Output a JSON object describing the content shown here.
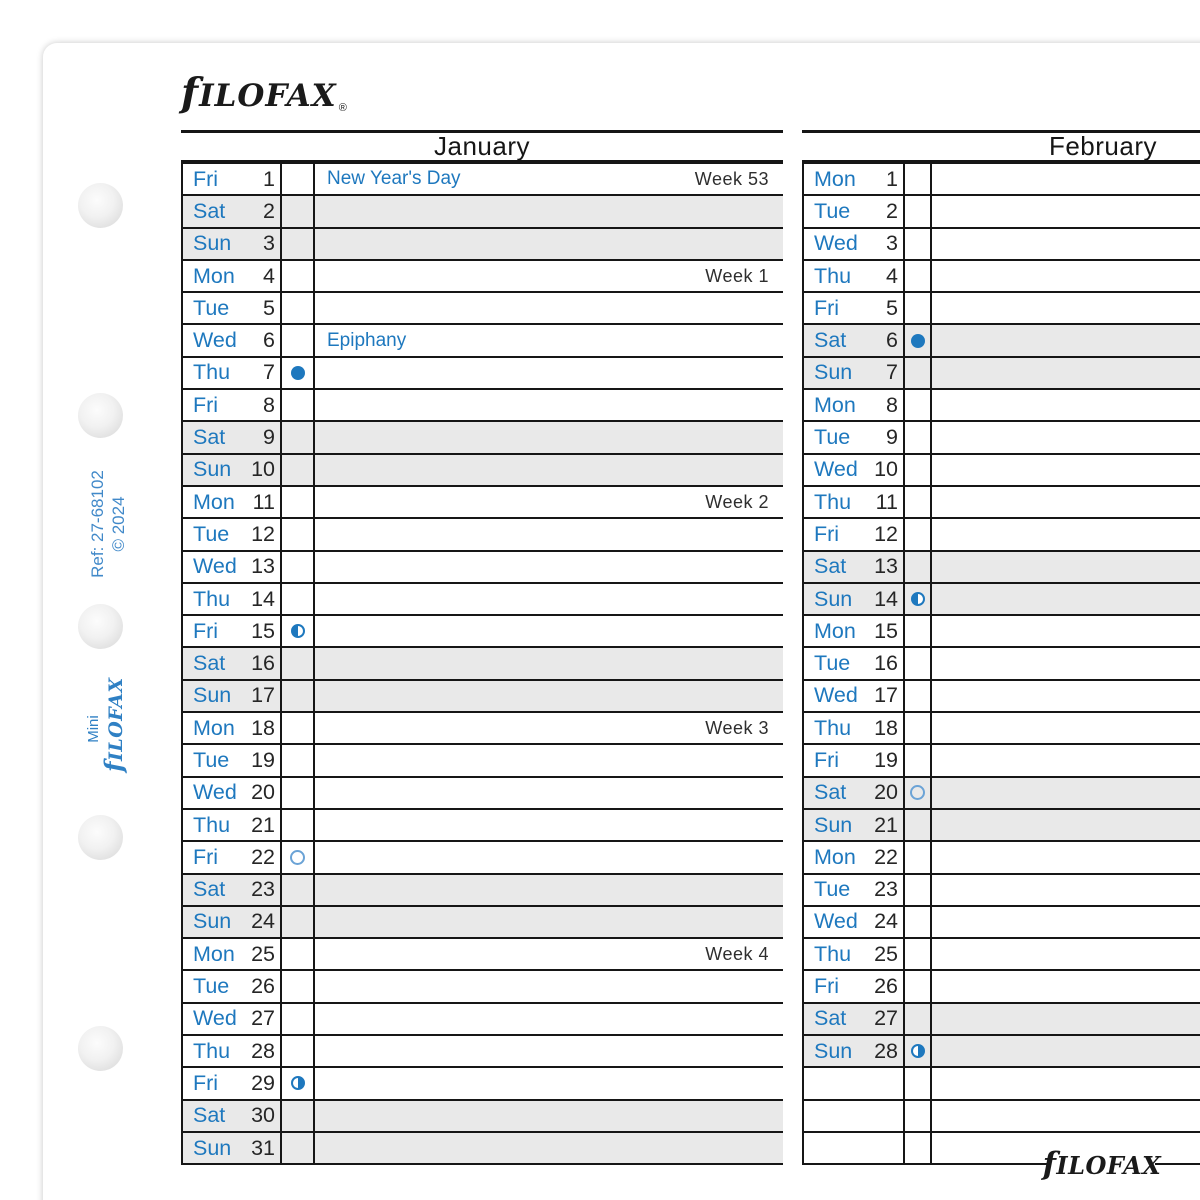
{
  "brand": {
    "logo": "fILOFAX",
    "registered": "®"
  },
  "side": {
    "ref_line1": "Ref: 27-68102",
    "ref_line2": "© 2024",
    "brand_line1": "Mini",
    "brand_line2": "fILOFAX"
  },
  "footer": {
    "logo": "fILOFAX"
  },
  "colors": {
    "accent_blue": "#1e78be",
    "side_text_blue": "#4189c9",
    "grid_black": "#161616",
    "weekend_gray": "#e9e9e9"
  },
  "months": [
    {
      "name": "January",
      "key": "jan",
      "rows": [
        {
          "day": "Fri",
          "date": "1",
          "event": "New Year's Day",
          "week": "Week 53",
          "moon": "",
          "weekend": false
        },
        {
          "day": "Sat",
          "date": "2",
          "event": "",
          "week": "",
          "moon": "",
          "weekend": true
        },
        {
          "day": "Sun",
          "date": "3",
          "event": "",
          "week": "",
          "moon": "",
          "weekend": true
        },
        {
          "day": "Mon",
          "date": "4",
          "event": "",
          "week": "Week 1",
          "moon": "",
          "weekend": false
        },
        {
          "day": "Tue",
          "date": "5",
          "event": "",
          "week": "",
          "moon": "",
          "weekend": false
        },
        {
          "day": "Wed",
          "date": "6",
          "event": "Epiphany",
          "week": "",
          "moon": "",
          "weekend": false
        },
        {
          "day": "Thu",
          "date": "7",
          "event": "",
          "week": "",
          "moon": "filled",
          "weekend": false
        },
        {
          "day": "Fri",
          "date": "8",
          "event": "",
          "week": "",
          "moon": "",
          "weekend": false
        },
        {
          "day": "Sat",
          "date": "9",
          "event": "",
          "week": "",
          "moon": "",
          "weekend": true
        },
        {
          "day": "Sun",
          "date": "10",
          "event": "",
          "week": "",
          "moon": "",
          "weekend": true
        },
        {
          "day": "Mon",
          "date": "11",
          "event": "",
          "week": "Week 2",
          "moon": "",
          "weekend": false
        },
        {
          "day": "Tue",
          "date": "12",
          "event": "",
          "week": "",
          "moon": "",
          "weekend": false
        },
        {
          "day": "Wed",
          "date": "13",
          "event": "",
          "week": "",
          "moon": "",
          "weekend": false
        },
        {
          "day": "Thu",
          "date": "14",
          "event": "",
          "week": "",
          "moon": "",
          "weekend": false
        },
        {
          "day": "Fri",
          "date": "15",
          "event": "",
          "week": "",
          "moon": "half-left",
          "weekend": false
        },
        {
          "day": "Sat",
          "date": "16",
          "event": "",
          "week": "",
          "moon": "",
          "weekend": true
        },
        {
          "day": "Sun",
          "date": "17",
          "event": "",
          "week": "",
          "moon": "",
          "weekend": true
        },
        {
          "day": "Mon",
          "date": "18",
          "event": "",
          "week": "Week 3",
          "moon": "",
          "weekend": false
        },
        {
          "day": "Tue",
          "date": "19",
          "event": "",
          "week": "",
          "moon": "",
          "weekend": false
        },
        {
          "day": "Wed",
          "date": "20",
          "event": "",
          "week": "",
          "moon": "",
          "weekend": false
        },
        {
          "day": "Thu",
          "date": "21",
          "event": "",
          "week": "",
          "moon": "",
          "weekend": false
        },
        {
          "day": "Fri",
          "date": "22",
          "event": "",
          "week": "",
          "moon": "open",
          "weekend": false
        },
        {
          "day": "Sat",
          "date": "23",
          "event": "",
          "week": "",
          "moon": "",
          "weekend": true
        },
        {
          "day": "Sun",
          "date": "24",
          "event": "",
          "week": "",
          "moon": "",
          "weekend": true
        },
        {
          "day": "Mon",
          "date": "25",
          "event": "",
          "week": "Week 4",
          "moon": "",
          "weekend": false
        },
        {
          "day": "Tue",
          "date": "26",
          "event": "",
          "week": "",
          "moon": "",
          "weekend": false
        },
        {
          "day": "Wed",
          "date": "27",
          "event": "",
          "week": "",
          "moon": "",
          "weekend": false
        },
        {
          "day": "Thu",
          "date": "28",
          "event": "",
          "week": "",
          "moon": "",
          "weekend": false
        },
        {
          "day": "Fri",
          "date": "29",
          "event": "",
          "week": "",
          "moon": "half-right",
          "weekend": false
        },
        {
          "day": "Sat",
          "date": "30",
          "event": "",
          "week": "",
          "moon": "",
          "weekend": true
        },
        {
          "day": "Sun",
          "date": "31",
          "event": "",
          "week": "",
          "moon": "",
          "weekend": true
        }
      ]
    },
    {
      "name": "February",
      "key": "feb",
      "rows": [
        {
          "day": "Mon",
          "date": "1",
          "event": "",
          "week": "",
          "moon": "",
          "weekend": false
        },
        {
          "day": "Tue",
          "date": "2",
          "event": "",
          "week": "",
          "moon": "",
          "weekend": false
        },
        {
          "day": "Wed",
          "date": "3",
          "event": "",
          "week": "",
          "moon": "",
          "weekend": false
        },
        {
          "day": "Thu",
          "date": "4",
          "event": "",
          "week": "",
          "moon": "",
          "weekend": false
        },
        {
          "day": "Fri",
          "date": "5",
          "event": "",
          "week": "",
          "moon": "",
          "weekend": false
        },
        {
          "day": "Sat",
          "date": "6",
          "event": "",
          "week": "",
          "moon": "filled",
          "weekend": true
        },
        {
          "day": "Sun",
          "date": "7",
          "event": "",
          "week": "",
          "moon": "",
          "weekend": true
        },
        {
          "day": "Mon",
          "date": "8",
          "event": "",
          "week": "",
          "moon": "",
          "weekend": false
        },
        {
          "day": "Tue",
          "date": "9",
          "event": "",
          "week": "",
          "moon": "",
          "weekend": false
        },
        {
          "day": "Wed",
          "date": "10",
          "event": "",
          "week": "",
          "moon": "",
          "weekend": false
        },
        {
          "day": "Thu",
          "date": "11",
          "event": "",
          "week": "",
          "moon": "",
          "weekend": false
        },
        {
          "day": "Fri",
          "date": "12",
          "event": "",
          "week": "",
          "moon": "",
          "weekend": false
        },
        {
          "day": "Sat",
          "date": "13",
          "event": "",
          "week": "",
          "moon": "",
          "weekend": true
        },
        {
          "day": "Sun",
          "date": "14",
          "event": "",
          "week": "",
          "moon": "half-left",
          "weekend": true
        },
        {
          "day": "Mon",
          "date": "15",
          "event": "",
          "week": "",
          "moon": "",
          "weekend": false
        },
        {
          "day": "Tue",
          "date": "16",
          "event": "",
          "week": "",
          "moon": "",
          "weekend": false
        },
        {
          "day": "Wed",
          "date": "17",
          "event": "",
          "week": "",
          "moon": "",
          "weekend": false
        },
        {
          "day": "Thu",
          "date": "18",
          "event": "",
          "week": "",
          "moon": "",
          "weekend": false
        },
        {
          "day": "Fri",
          "date": "19",
          "event": "",
          "week": "",
          "moon": "",
          "weekend": false
        },
        {
          "day": "Sat",
          "date": "20",
          "event": "",
          "week": "",
          "moon": "open",
          "weekend": true
        },
        {
          "day": "Sun",
          "date": "21",
          "event": "",
          "week": "",
          "moon": "",
          "weekend": true
        },
        {
          "day": "Mon",
          "date": "22",
          "event": "",
          "week": "",
          "moon": "",
          "weekend": false
        },
        {
          "day": "Tue",
          "date": "23",
          "event": "",
          "week": "",
          "moon": "",
          "weekend": false
        },
        {
          "day": "Wed",
          "date": "24",
          "event": "",
          "week": "",
          "moon": "",
          "weekend": false
        },
        {
          "day": "Thu",
          "date": "25",
          "event": "",
          "week": "",
          "moon": "",
          "weekend": false
        },
        {
          "day": "Fri",
          "date": "26",
          "event": "",
          "week": "",
          "moon": "",
          "weekend": false
        },
        {
          "day": "Sat",
          "date": "27",
          "event": "",
          "week": "",
          "moon": "",
          "weekend": true
        },
        {
          "day": "Sun",
          "date": "28",
          "event": "",
          "week": "",
          "moon": "half-right",
          "weekend": true
        },
        {
          "day": "",
          "date": "",
          "event": "",
          "week": "",
          "moon": "",
          "weekend": false
        },
        {
          "day": "",
          "date": "",
          "event": "",
          "week": "",
          "moon": "",
          "weekend": false
        },
        {
          "day": "",
          "date": "",
          "event": "",
          "week": "",
          "moon": "",
          "weekend": false
        }
      ]
    }
  ]
}
